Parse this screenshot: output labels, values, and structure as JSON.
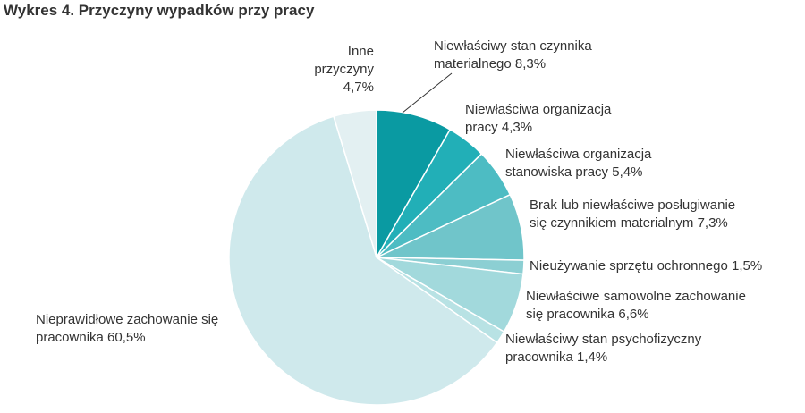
{
  "chart_data": {
    "type": "pie",
    "title": "Wykres 4. Przyczyny wypadków przy pracy",
    "categories": [
      "Niewłaściwy stan czynnika materialnego",
      "Niewłaściwa organizacja pracy",
      "Niewłaściwa organizacja stanowiska pracy",
      "Brak lub niewłaściwe posługiwanie się czynnikiem materialnym",
      "Nieużywanie sprzętu ochronnego",
      "Niewłaściwe samowolne zachowanie się pracownika",
      "Niewłaściwy stan psychofizyczny pracownika",
      "Nieprawidłowe zachowanie się pracownika",
      "Inne przyczyny"
    ],
    "values": [
      8.3,
      4.3,
      5.4,
      7.3,
      1.5,
      6.6,
      1.4,
      60.5,
      4.7
    ],
    "value_labels": [
      "8,3%",
      "4,3%",
      "5,4%",
      "7,3%",
      "1,5%",
      "6,6%",
      "1,4%",
      "60,5%",
      "4,7%"
    ],
    "colors": [
      "#0a9aa2",
      "#22afb7",
      "#4dbcc3",
      "#70c5ca",
      "#8ccfd3",
      "#a2d9dc",
      "#b8e2e4",
      "#cfe9ec",
      "#e3f0f2"
    ]
  }
}
